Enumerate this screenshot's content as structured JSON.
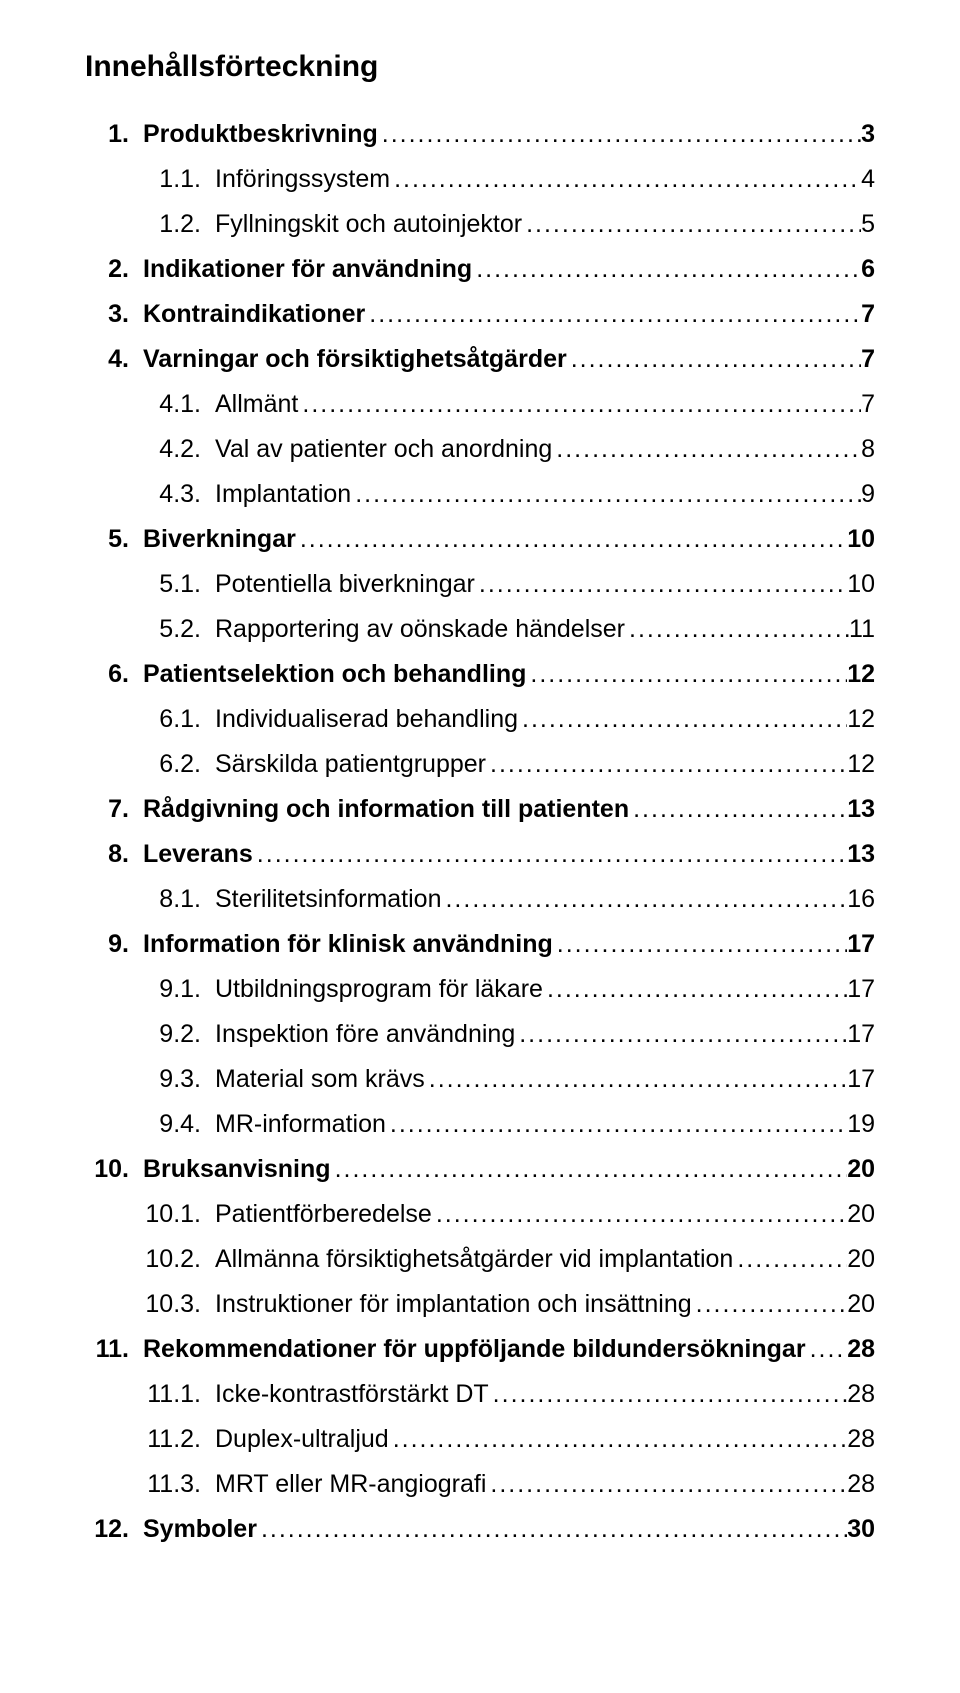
{
  "doc": {
    "title": "Innehållsförteckning",
    "leader_char": ".",
    "text_color": "#000000",
    "background_color": "#ffffff",
    "base_fontsize": 25,
    "title_fontsize": 30,
    "entries": [
      {
        "level": 1,
        "num": "1.",
        "label": "Produktbeskrivning",
        "page": "3"
      },
      {
        "level": 2,
        "num": "1.1.",
        "label": "Införingssystem",
        "page": "4"
      },
      {
        "level": 2,
        "num": "1.2.",
        "label": "Fyllningskit och autoinjektor",
        "page": "5"
      },
      {
        "level": 1,
        "num": "2.",
        "label": "Indikationer för användning",
        "page": "6"
      },
      {
        "level": 1,
        "num": "3.",
        "label": "Kontraindikationer",
        "page": "7"
      },
      {
        "level": 1,
        "num": "4.",
        "label": "Varningar och försiktighetsåtgärder",
        "page": "7"
      },
      {
        "level": 2,
        "num": "4.1.",
        "label": "Allmänt",
        "page": "7"
      },
      {
        "level": 2,
        "num": "4.2.",
        "label": "Val av patienter och anordning",
        "page": "8"
      },
      {
        "level": 2,
        "num": "4.3.",
        "label": "Implantation",
        "page": "9"
      },
      {
        "level": 1,
        "num": "5.",
        "label": "Biverkningar",
        "page": "10"
      },
      {
        "level": 2,
        "num": "5.1.",
        "label": "Potentiella biverkningar",
        "page": "10"
      },
      {
        "level": 2,
        "num": "5.2.",
        "label": "Rapportering av oönskade händelser",
        "page": "11"
      },
      {
        "level": 1,
        "num": "6.",
        "label": "Patientselektion och behandling",
        "page": "12"
      },
      {
        "level": 2,
        "num": "6.1.",
        "label": "Individualiserad behandling",
        "page": "12"
      },
      {
        "level": 2,
        "num": "6.2.",
        "label": "Särskilda patientgrupper",
        "page": "12"
      },
      {
        "level": 1,
        "num": "7.",
        "label": "Rådgivning och information till patienten",
        "page": "13"
      },
      {
        "level": 1,
        "num": "8.",
        "label": "Leverans",
        "page": "13"
      },
      {
        "level": 2,
        "num": "8.1.",
        "label": "Sterilitetsinformation",
        "page": "16"
      },
      {
        "level": 1,
        "num": "9.",
        "label": "Information för klinisk användning",
        "page": "17"
      },
      {
        "level": 2,
        "num": "9.1.",
        "label": "Utbildningsprogram för läkare",
        "page": "17"
      },
      {
        "level": 2,
        "num": "9.2.",
        "label": "Inspektion före användning",
        "page": "17"
      },
      {
        "level": 2,
        "num": "9.3.",
        "label": "Material som krävs",
        "page": "17"
      },
      {
        "level": 2,
        "num": "9.4.",
        "label": "MR-information",
        "page": "19"
      },
      {
        "level": 1,
        "num": "10.",
        "label": "Bruksanvisning",
        "page": "20"
      },
      {
        "level": 2,
        "num": "10.1.",
        "label": "Patientförberedelse",
        "page": "20"
      },
      {
        "level": 2,
        "num": "10.2.",
        "label": "Allmänna försiktighetsåtgärder vid implantation",
        "page": "20"
      },
      {
        "level": 2,
        "num": "10.3.",
        "label": "Instruktioner för implantation och insättning",
        "page": "20"
      },
      {
        "level": 1,
        "num": "11.",
        "label": "Rekommendationer för uppföljande bildundersökningar",
        "page": "28"
      },
      {
        "level": 2,
        "num": "11.1.",
        "label": "Icke-kontrastförstärkt DT",
        "page": "28"
      },
      {
        "level": 2,
        "num": "11.2.",
        "label": "Duplex-ultraljud",
        "page": "28"
      },
      {
        "level": 2,
        "num": "11.3.",
        "label": "MRT eller MR-angiografi",
        "page": "28"
      },
      {
        "level": 1,
        "num": "12.",
        "label": "Symboler",
        "page": "30"
      }
    ]
  }
}
